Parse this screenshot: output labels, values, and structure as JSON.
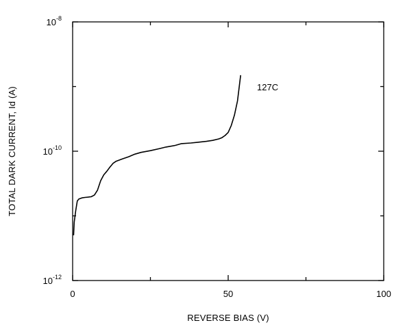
{
  "chart_data": {
    "type": "line",
    "xlabel": "REVERSE BIAS (V)",
    "ylabel": "TOTAL DARK CURRENT, Id (A)",
    "xlim": [
      0,
      100
    ],
    "ylim": [
      1e-12,
      1e-08
    ],
    "y_scale": "log",
    "grid": false,
    "x_ticks": [
      {
        "value": 0,
        "label": "0"
      },
      {
        "value": 50,
        "label": "50"
      },
      {
        "value": 100,
        "label": "100"
      }
    ],
    "y_ticks": [
      {
        "value": 1e-12,
        "label": "10",
        "exp": "-12"
      },
      {
        "value": 1e-10,
        "label": "10",
        "exp": "-10"
      },
      {
        "value": 1e-08,
        "label": "10",
        "exp": "-8"
      }
    ],
    "series": [
      {
        "name": "127C",
        "x": [
          0.3,
          0.5,
          1,
          1.5,
          2,
          3,
          4,
          5,
          6,
          7,
          8,
          9,
          10,
          11,
          12,
          13,
          14,
          16,
          18,
          20,
          22,
          25,
          28,
          30,
          33,
          35,
          38,
          40,
          43,
          45,
          47,
          48,
          49,
          50,
          51,
          52,
          53,
          54
        ],
        "y": [
          5e-12,
          8e-12,
          1.2e-11,
          1.7e-11,
          1.82e-11,
          1.9e-11,
          1.93e-11,
          1.95e-11,
          1.98e-11,
          2.1e-11,
          2.5e-11,
          3.5e-11,
          4.3e-11,
          4.9e-11,
          5.7e-11,
          6.5e-11,
          7e-11,
          7.6e-11,
          8.2e-11,
          9e-11,
          9.6e-11,
          1.02e-10,
          1.1e-10,
          1.16e-10,
          1.23e-10,
          1.31e-10,
          1.34e-10,
          1.37e-10,
          1.42e-10,
          1.47e-10,
          1.55e-10,
          1.62e-10,
          1.75e-10,
          1.95e-10,
          2.5e-10,
          3.6e-10,
          6e-10,
          1.5e-09
        ]
      }
    ]
  }
}
